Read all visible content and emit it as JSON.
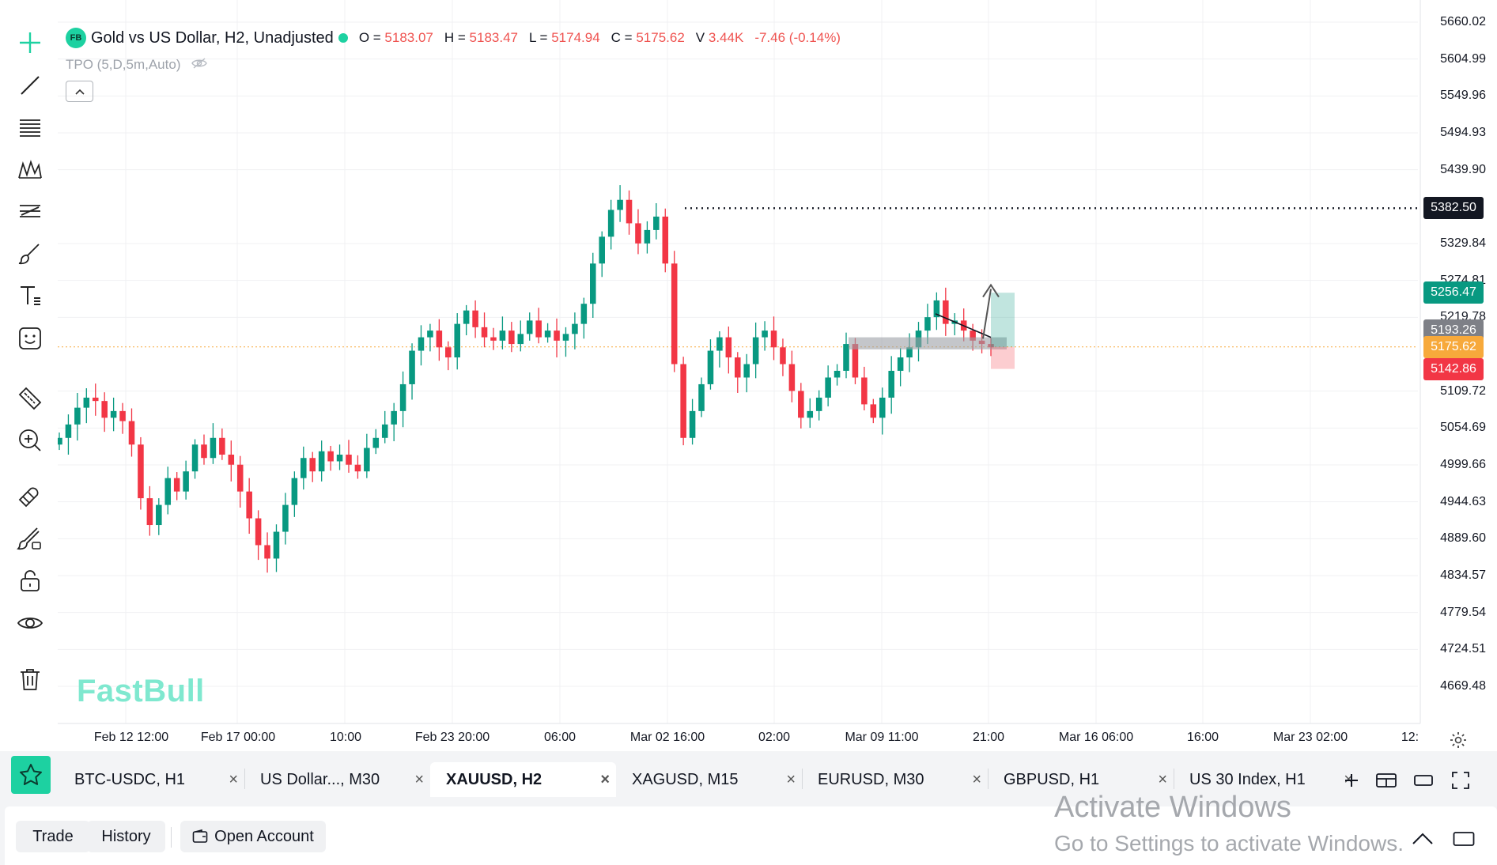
{
  "legend": {
    "badge": "FB",
    "title": "Gold vs US Dollar, H2, Unadjusted",
    "open_label": "O =",
    "open": "5183.07",
    "high_label": "H =",
    "high": "5183.47",
    "low_label": "L =",
    "low": "5174.94",
    "close_label": "C =",
    "close": "5175.62",
    "volume_label": "V",
    "volume": "3.44K",
    "change": "-7.46 (-0.14%)",
    "indicator": "TPO (5,D,5m,Auto)"
  },
  "watermark": "FastBull",
  "toolbar": {
    "icons": [
      "crosshair-icon",
      "trend-line-icon",
      "fib-retracement-icon",
      "pattern-icon",
      "forecast-icon",
      "brush-icon",
      "text-icon",
      "emoji-icon",
      "ruler-icon",
      "zoom-in-icon",
      "magnet-icon",
      "lock-drawing-icon",
      "unlock-icon",
      "eye-icon",
      "trash-icon"
    ]
  },
  "price_axis": {
    "labels": [
      "5660.02",
      "5604.99",
      "5549.96",
      "5494.93",
      "5439.90",
      "5329.84",
      "5274.81",
      "5219.78",
      "5109.72",
      "5054.69",
      "4999.66",
      "4944.63",
      "4889.60",
      "4834.57",
      "4779.54",
      "4724.51",
      "4669.48"
    ],
    "tags": [
      {
        "value": "5382.50",
        "color": "#131722"
      },
      {
        "value": "5256.47",
        "color": "#089981"
      },
      {
        "value": "5193.26",
        "color": "#7e8087"
      },
      {
        "value": "5175.62",
        "color": "#f7a93b"
      },
      {
        "value": "5142.86",
        "color": "#f23645"
      }
    ]
  },
  "time_axis": {
    "labels": [
      "Feb 12 12:00",
      "Feb 17 00:00",
      "10:00",
      "Feb 23 20:00",
      "06:00",
      "Mar 02 16:00",
      "02:00",
      "Mar 09 11:00",
      "21:00",
      "Mar 16 06:00",
      "16:00",
      "Mar 23 02:00",
      "12:"
    ]
  },
  "tabs": [
    {
      "label": "BTC-USDC, H1",
      "active": false
    },
    {
      "label": "US Dollar..., M30",
      "active": false
    },
    {
      "label": "XAUUSD, H2",
      "active": true
    },
    {
      "label": "XAGUSD, M15",
      "active": false
    },
    {
      "label": "EURUSD, M30",
      "active": false
    },
    {
      "label": "GBPUSD, H1",
      "active": false
    },
    {
      "label": "US 30 Index, H1",
      "active": false
    }
  ],
  "tab_close": "×",
  "tabbar_icons": [
    "add-tab-icon",
    "layout-icon",
    "window-icon",
    "fullscreen-icon"
  ],
  "bottom": {
    "trade": "Trade",
    "history": "History",
    "open_account": "Open Account"
  },
  "activate": {
    "line1": "Activate Windows",
    "line2": "Go to Settings to activate Windows."
  },
  "colors": {
    "up": "#089981",
    "down": "#f23645",
    "accent": "#1dd1a1"
  },
  "chart_data": {
    "type": "candlestick",
    "symbol": "XAUUSD",
    "timeframe": "H2",
    "ylim": [
      4640,
      5680
    ],
    "horizontal_line": 5382.5,
    "current_price": 5175.62,
    "position": {
      "entry": 5175.62,
      "target": 5256.47,
      "stop": 5142.86
    },
    "closes": [
      5040,
      5060,
      5085,
      5100,
      5095,
      5070,
      5080,
      5065,
      5030,
      4950,
      4910,
      4940,
      4980,
      4960,
      4990,
      5030,
      5010,
      5040,
      5015,
      5000,
      4960,
      4920,
      4880,
      4860,
      4900,
      4940,
      4980,
      5010,
      4990,
      5020,
      5005,
      5015,
      5000,
      4990,
      5025,
      5040,
      5060,
      5080,
      5120,
      5170,
      5190,
      5200,
      5175,
      5160,
      5210,
      5230,
      5205,
      5190,
      5185,
      5200,
      5180,
      5195,
      5215,
      5190,
      5200,
      5185,
      5195,
      5210,
      5240,
      5300,
      5340,
      5380,
      5395,
      5360,
      5330,
      5350,
      5370,
      5300,
      5150,
      5040,
      5080,
      5120,
      5170,
      5190,
      5160,
      5130,
      5150,
      5190,
      5200,
      5175,
      5150,
      5110,
      5070,
      5080,
      5100,
      5130,
      5140,
      5180,
      5130,
      5090,
      5070,
      5100,
      5140,
      5160,
      5175,
      5200,
      5220,
      5245,
      5210,
      5215,
      5200,
      5185,
      5180,
      5175
    ]
  }
}
